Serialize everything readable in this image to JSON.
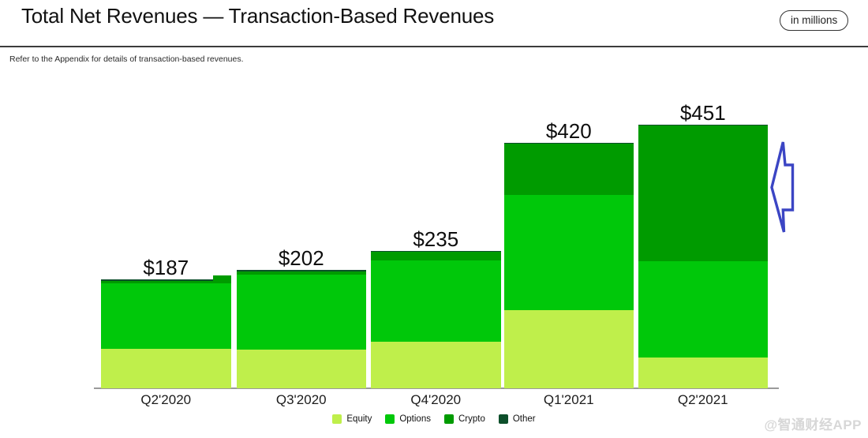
{
  "header": {
    "title": "Total Net Revenues — Transaction-Based Revenues",
    "badge": "in millions"
  },
  "note": "Refer to the Appendix for details of transaction-based revenues.",
  "watermark": "@智通财经APP",
  "colors": {
    "equity": "#bfef4b",
    "options": "#00c80a",
    "crypto": "#009b00",
    "other": "#0d4f2b",
    "axis": "#9a9a9a",
    "annotation_arrow": "#3b45c4"
  },
  "chart_data": {
    "type": "bar",
    "stacked": true,
    "unit": "USD millions",
    "title": "Total Net Revenues — Transaction-Based Revenues",
    "xlabel": "",
    "ylabel": "",
    "value_axis_visible": false,
    "gridlines": false,
    "legend_position": "bottom",
    "categories": [
      "Q2'2020",
      "Q3'2020",
      "Q4'2020",
      "Q1'2021",
      "Q2'2021"
    ],
    "series": [
      {
        "name": "Equity",
        "color": "#bfef4b",
        "values": [
          68,
          66,
          80,
          133,
          52
        ]
      },
      {
        "name": "Options",
        "color": "#00c80a",
        "values": [
          111,
          129,
          139,
          198,
          165
        ]
      },
      {
        "name": "Crypto",
        "color": "#009b00",
        "values": [
          5,
          5,
          14,
          88,
          233
        ]
      },
      {
        "name": "Other",
        "color": "#0d4f2b",
        "values": [
          3,
          2,
          2,
          1,
          1
        ]
      }
    ],
    "totals": [
      187,
      202,
      235,
      420,
      451
    ],
    "total_labels": [
      "$187",
      "$202",
      "$235",
      "$420",
      "$451"
    ]
  }
}
